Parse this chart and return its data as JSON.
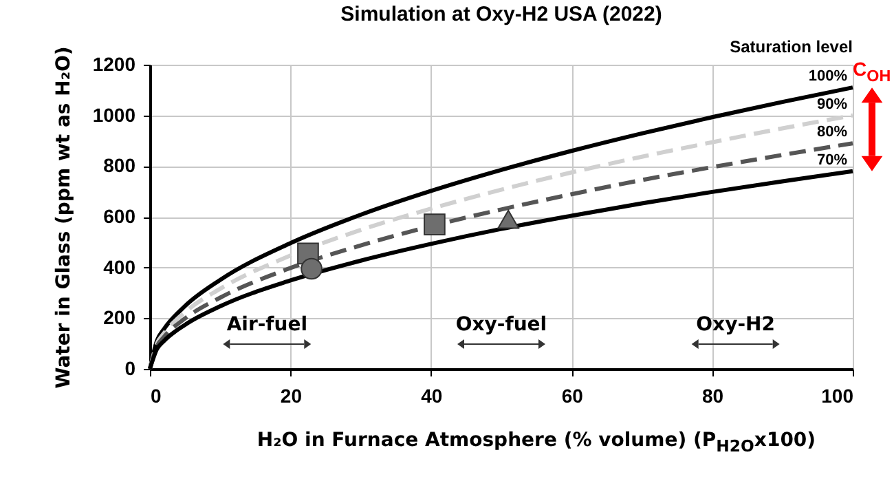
{
  "chart_data": {
    "type": "line",
    "title": "Simulation at Oxy-H2 USA (2022)",
    "xlabel": "H₂O in Furnace Atmosphere (% volume) (P$_{H2O}$x100)",
    "ylabel": "Water in Glass (ppm wt as H₂O)",
    "legend_title": "Saturation level",
    "xlim": [
      0,
      100
    ],
    "ylim": [
      0,
      1200
    ],
    "xticks": [
      0,
      20,
      40,
      60,
      80,
      100
    ],
    "yticks": [
      0,
      200,
      400,
      600,
      800,
      1000,
      1200
    ],
    "grid": true,
    "x": [
      0,
      1,
      2,
      5,
      10,
      20,
      30,
      40,
      50,
      60,
      70,
      80,
      90,
      100
    ],
    "series": [
      {
        "name": "100%",
        "color": "#000000",
        "line_style": "solid",
        "values": [
          0,
          111,
          157,
          248,
          351,
          496,
          608,
          702,
          785,
          860,
          929,
          993,
          1053,
          1110
        ]
      },
      {
        "name": "90%",
        "color": "#d0d0d0",
        "line_style": "dashed",
        "values": [
          0,
          100,
          141,
          224,
          316,
          447,
          548,
          632,
          707,
          775,
          837,
          894,
          949,
          1000
        ]
      },
      {
        "name": "80%",
        "color": "#555555",
        "line_style": "dashed",
        "values": [
          0,
          89,
          126,
          199,
          281,
          398,
          487,
          563,
          629,
          689,
          745,
          796,
          844,
          890
        ]
      },
      {
        "name": "70%",
        "color": "#000000",
        "line_style": "solid",
        "values": [
          0,
          78,
          110,
          174,
          247,
          349,
          427,
          493,
          552,
          604,
          653,
          698,
          740,
          780
        ]
      },
      {
        "type": "scatter",
        "marker": "square",
        "color": "#6e6e6e",
        "x": [
          22.5,
          40.5
        ],
        "values": [
          455,
          570
        ]
      },
      {
        "type": "scatter",
        "marker": "circle",
        "color": "#6e6e6e",
        "x": [
          23
        ],
        "values": [
          395
        ]
      },
      {
        "type": "scatter",
        "marker": "triangle",
        "color": "#6e6e6e",
        "x": [
          51
        ],
        "values": [
          590
        ]
      }
    ],
    "annotations": [
      "Air-fuel",
      "Oxy-fuel",
      "Oxy-H2",
      {
        "text": "C$_{OH}$",
        "x": 100,
        "y": 1110
      }
    ]
  }
}
